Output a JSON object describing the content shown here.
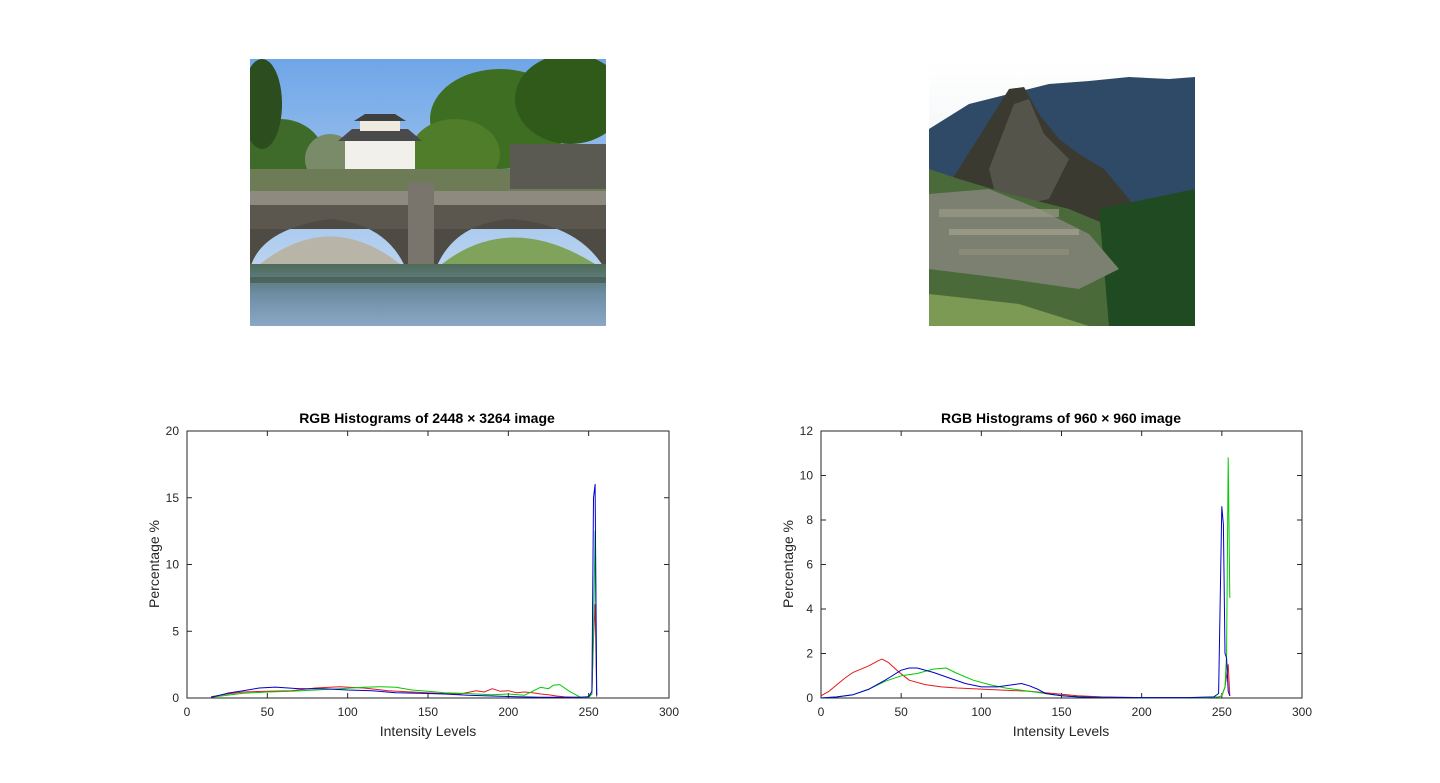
{
  "colors": {
    "red": "#e41a1c",
    "green": "#00cc00",
    "blue": "#0000cc",
    "axis": "#262626"
  },
  "photos": [
    {
      "name": "bridge-castle-photo"
    },
    {
      "name": "mountain-ruins-photo"
    }
  ],
  "chart_data": [
    {
      "type": "line",
      "title": "RGB Histograms of 2448 × 3264 image",
      "xlabel": "Intensity Levels",
      "ylabel": "Percentage %",
      "xlim": [
        0,
        300
      ],
      "ylim": [
        0,
        20
      ],
      "xticks": [
        0,
        50,
        100,
        150,
        200,
        250,
        300
      ],
      "yticks": [
        0,
        5,
        10,
        15,
        20
      ],
      "legend": "none",
      "series": [
        {
          "color": "red",
          "x": [
            15,
            25,
            35,
            50,
            65,
            80,
            95,
            110,
            125,
            140,
            155,
            170,
            180,
            185,
            190,
            195,
            200,
            205,
            210,
            215,
            220,
            225,
            230,
            235,
            240,
            245,
            250,
            252,
            253,
            254,
            255
          ],
          "y": [
            0.1,
            0.3,
            0.45,
            0.5,
            0.55,
            0.75,
            0.85,
            0.75,
            0.55,
            0.45,
            0.35,
            0.3,
            0.55,
            0.45,
            0.7,
            0.5,
            0.55,
            0.4,
            0.45,
            0.4,
            0.3,
            0.25,
            0.15,
            0.08,
            0.05,
            0.05,
            0.1,
            0.3,
            4.5,
            7.0,
            0.1
          ]
        },
        {
          "color": "green",
          "x": [
            15,
            25,
            35,
            50,
            65,
            80,
            95,
            110,
            120,
            130,
            140,
            150,
            160,
            170,
            180,
            190,
            200,
            210,
            215,
            220,
            225,
            228,
            232,
            238,
            245,
            250,
            252,
            253,
            254,
            255
          ],
          "y": [
            0.05,
            0.2,
            0.35,
            0.45,
            0.5,
            0.6,
            0.7,
            0.8,
            0.85,
            0.8,
            0.6,
            0.5,
            0.4,
            0.35,
            0.3,
            0.25,
            0.3,
            0.2,
            0.5,
            0.8,
            0.7,
            0.95,
            1.0,
            0.5,
            0.05,
            0.05,
            0.3,
            5.0,
            12.5,
            0.2
          ]
        },
        {
          "color": "blue",
          "x": [
            15,
            25,
            35,
            45,
            55,
            70,
            85,
            100,
            115,
            130,
            145,
            160,
            175,
            190,
            205,
            220,
            235,
            245,
            250,
            252,
            253,
            254,
            255
          ],
          "y": [
            0.05,
            0.35,
            0.55,
            0.75,
            0.82,
            0.7,
            0.7,
            0.6,
            0.55,
            0.4,
            0.35,
            0.3,
            0.2,
            0.15,
            0.1,
            0.05,
            0.05,
            0.05,
            0.1,
            0.5,
            15.0,
            16.0,
            0.2
          ]
        }
      ]
    },
    {
      "type": "line",
      "title": "RGB Histograms of 960 × 960 image",
      "xlabel": "Intensity Levels",
      "ylabel": "Percentage %",
      "xlim": [
        0,
        300
      ],
      "ylim": [
        0,
        12
      ],
      "xticks": [
        0,
        50,
        100,
        150,
        200,
        250,
        300
      ],
      "yticks": [
        0,
        2,
        4,
        6,
        8,
        10,
        12
      ],
      "legend": "none",
      "series": [
        {
          "color": "red",
          "x": [
            0,
            5,
            10,
            15,
            20,
            25,
            30,
            35,
            38,
            42,
            48,
            55,
            65,
            75,
            85,
            100,
            115,
            130,
            145,
            160,
            175,
            200,
            225,
            240,
            248,
            250,
            252,
            253,
            254,
            255
          ],
          "y": [
            0.1,
            0.3,
            0.6,
            0.9,
            1.15,
            1.3,
            1.45,
            1.65,
            1.75,
            1.6,
            1.2,
            0.8,
            0.6,
            0.5,
            0.45,
            0.4,
            0.35,
            0.3,
            0.2,
            0.1,
            0.05,
            0.02,
            0.02,
            0.03,
            0.05,
            0.1,
            0.5,
            1.0,
            1.5,
            0.1
          ]
        },
        {
          "color": "green",
          "x": [
            0,
            10,
            20,
            30,
            40,
            50,
            60,
            70,
            78,
            85,
            95,
            105,
            115,
            125,
            135,
            145,
            155,
            165,
            180,
            200,
            220,
            240,
            248,
            250,
            252,
            253,
            254,
            255
          ],
          "y": [
            0.0,
            0.05,
            0.15,
            0.4,
            0.75,
            1.0,
            1.1,
            1.3,
            1.35,
            1.1,
            0.8,
            0.6,
            0.45,
            0.35,
            0.25,
            0.15,
            0.08,
            0.05,
            0.02,
            0.02,
            0.02,
            0.02,
            0.05,
            0.1,
            0.5,
            2.0,
            10.8,
            4.5
          ]
        },
        {
          "color": "blue",
          "x": [
            0,
            10,
            20,
            30,
            40,
            50,
            55,
            60,
            70,
            80,
            90,
            100,
            110,
            120,
            125,
            130,
            135,
            140,
            150,
            160,
            170,
            200,
            230,
            245,
            248,
            250,
            251,
            252,
            253,
            254,
            255
          ],
          "y": [
            0.0,
            0.05,
            0.15,
            0.4,
            0.8,
            1.25,
            1.35,
            1.35,
            1.15,
            0.9,
            0.65,
            0.5,
            0.5,
            0.6,
            0.65,
            0.55,
            0.4,
            0.2,
            0.1,
            0.05,
            0.03,
            0.02,
            0.02,
            0.05,
            0.2,
            8.6,
            7.8,
            2.0,
            1.8,
            0.3,
            0.1
          ]
        }
      ]
    }
  ]
}
